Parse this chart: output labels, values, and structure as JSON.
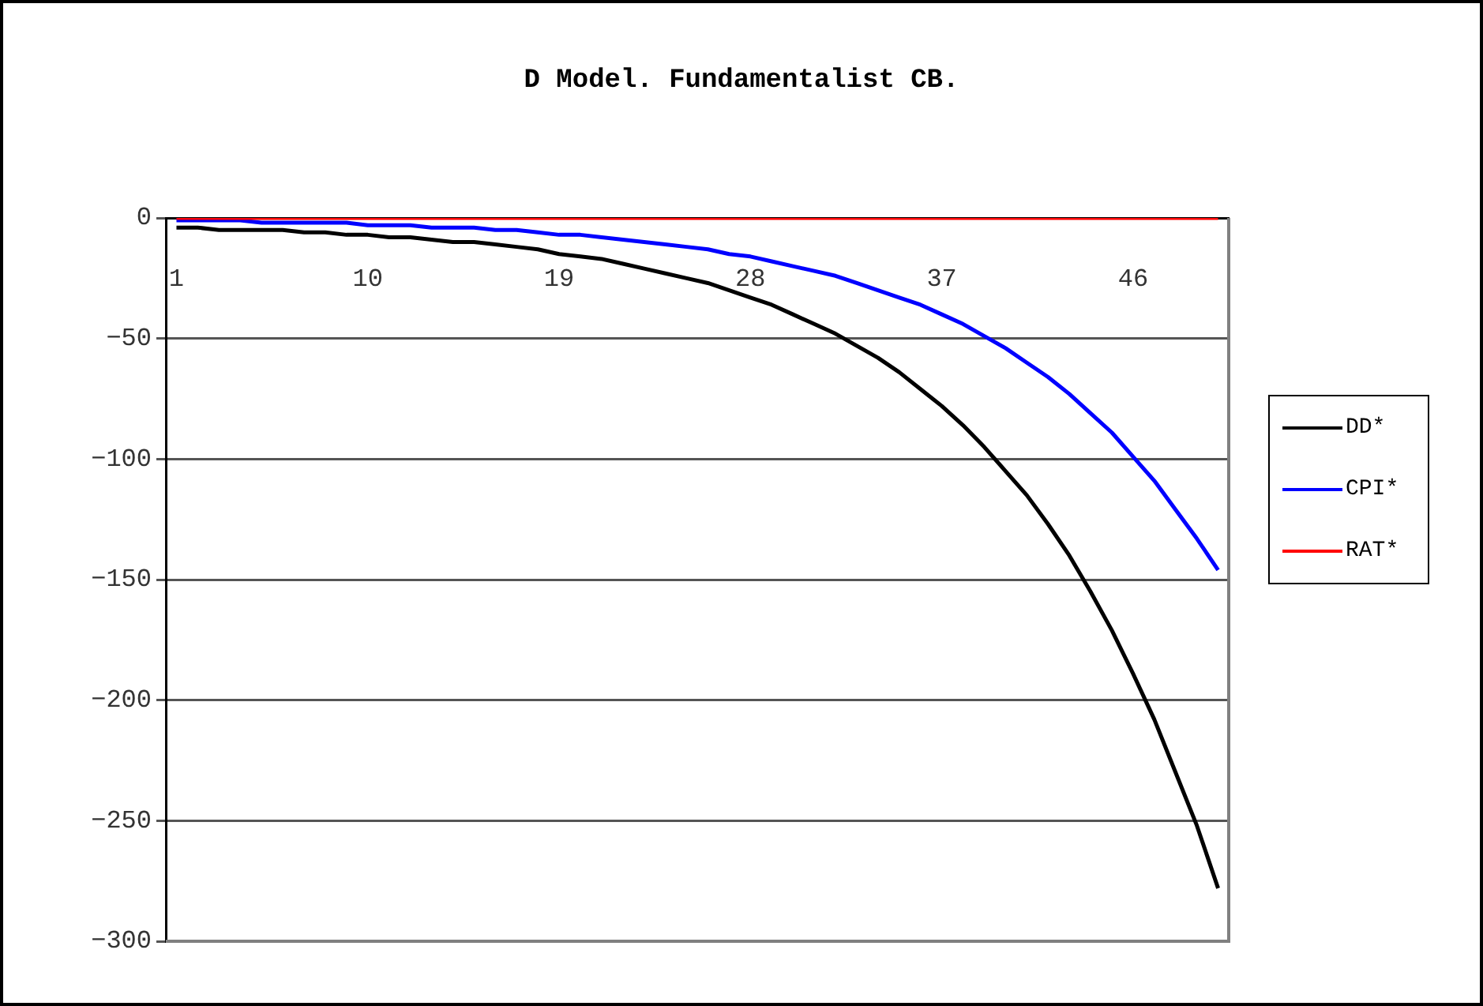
{
  "chart_data": {
    "type": "line",
    "title": "D Model. Fundamentalist CB.",
    "categories": [
      "1",
      null,
      null,
      null,
      null,
      null,
      null,
      null,
      null,
      "10",
      null,
      null,
      null,
      null,
      null,
      null,
      null,
      null,
      "19",
      null,
      null,
      null,
      null,
      null,
      null,
      null,
      null,
      "28",
      null,
      null,
      null,
      null,
      null,
      null,
      null,
      null,
      "37",
      null,
      null,
      null,
      null,
      null,
      null,
      null,
      null,
      "46",
      null,
      null,
      null,
      null
    ],
    "series": [
      {
        "name": "DD*",
        "color": "#000000",
        "values": [
          -4,
          -4,
          -5,
          -5,
          -5,
          -5,
          -6,
          -6,
          -7,
          -7,
          -8,
          -8,
          -9,
          -10,
          -10,
          -11,
          -12,
          -13,
          -15,
          -16,
          -17,
          -19,
          -21,
          -23,
          -25,
          -27,
          -30,
          -33,
          -36,
          -40,
          -44,
          -48,
          -53,
          -58,
          -64,
          -71,
          -78,
          -86,
          -95,
          -105,
          -115,
          -127,
          -140,
          -155,
          -171,
          -189,
          -208,
          -230,
          -252,
          -278
        ]
      },
      {
        "name": "CPI*",
        "color": "#0000ff",
        "values": [
          -1,
          -1,
          -1,
          -1,
          -2,
          -2,
          -2,
          -2,
          -2,
          -3,
          -3,
          -3,
          -4,
          -4,
          -4,
          -5,
          -5,
          -6,
          -7,
          -7,
          -8,
          -9,
          -10,
          -11,
          -12,
          -13,
          -15,
          -16,
          -18,
          -20,
          -22,
          -24,
          -27,
          -30,
          -33,
          -36,
          -40,
          -44,
          -49,
          -54,
          -60,
          -66,
          -73,
          -81,
          -89,
          -99,
          -109,
          -121,
          -133,
          -146
        ]
      },
      {
        "name": "RAT*",
        "color": "#ff0000",
        "values": [
          0,
          0,
          0,
          0,
          0,
          0,
          0,
          0,
          0,
          0,
          0,
          0,
          0,
          0,
          0,
          0,
          0,
          0,
          0,
          0,
          0,
          0,
          0,
          0,
          0,
          0,
          0,
          0,
          0,
          0,
          0,
          0,
          0,
          0,
          0,
          0,
          0,
          0,
          0,
          0,
          0,
          0,
          0,
          0,
          0,
          0,
          0,
          0,
          0,
          0
        ]
      }
    ],
    "ylim": [
      -300,
      0
    ],
    "yticks": [
      -300,
      -250,
      -200,
      -150,
      -100,
      -50,
      0
    ],
    "grid": "y",
    "legend": "right"
  }
}
